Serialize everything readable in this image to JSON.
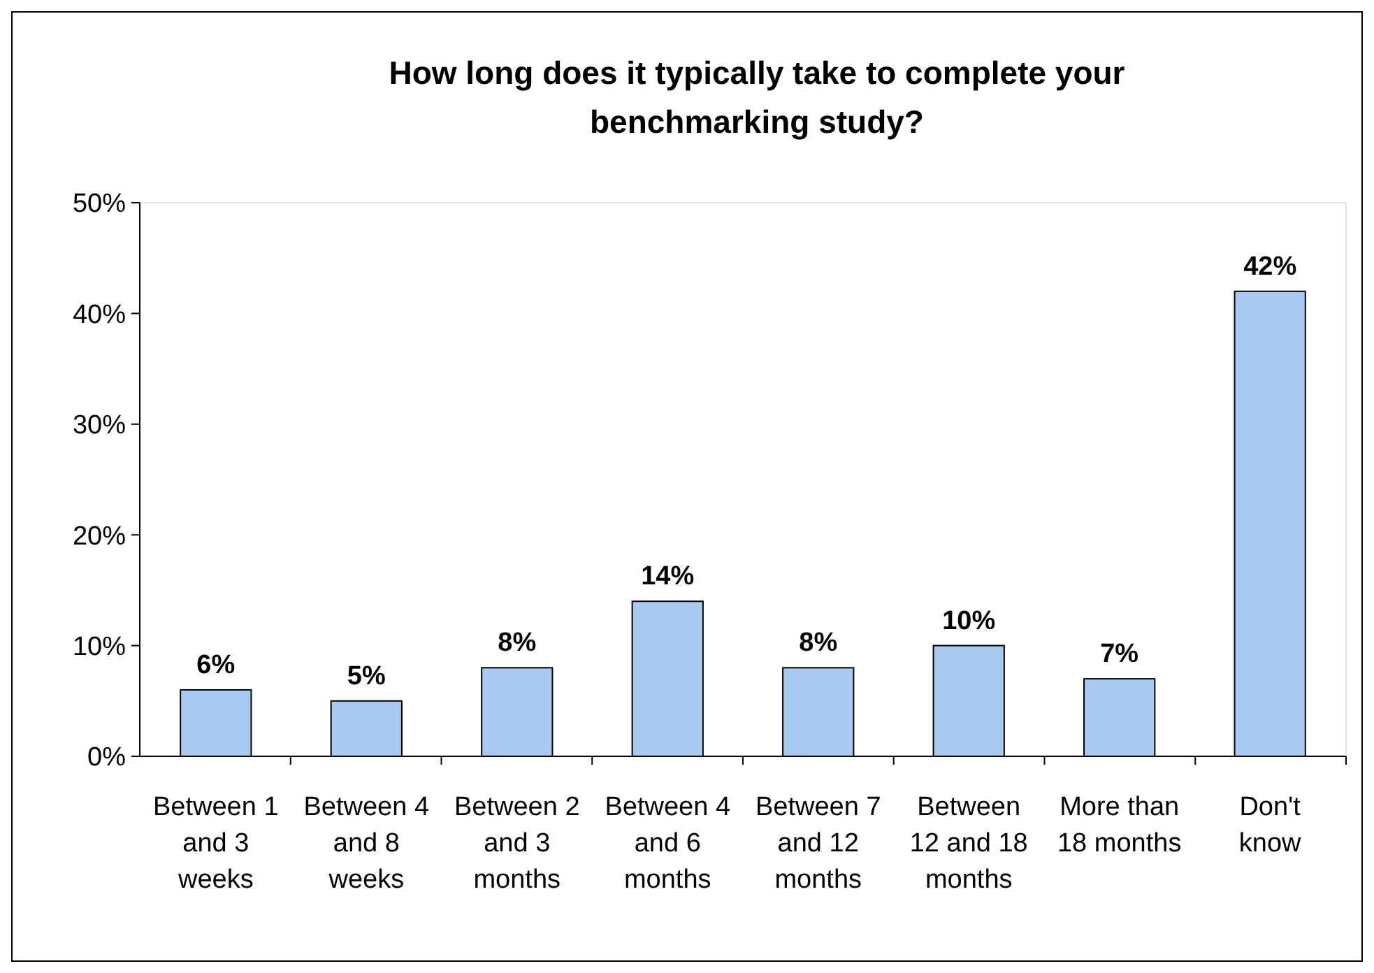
{
  "chart_data": {
    "type": "bar",
    "title": "How long does it typically take to complete your benchmarking study?",
    "categories": [
      "Between 1 and 3 weeks",
      "Between 4 and 8 weeks",
      "Between 2 and 3 months",
      "Between 4 and 6 months",
      "Between 7 and 12 months",
      "Between 12 and 18 months",
      "More than 18 months",
      "Don't know"
    ],
    "values": [
      6,
      5,
      8,
      14,
      8,
      10,
      7,
      42
    ],
    "value_labels": [
      "6%",
      "5%",
      "8%",
      "14%",
      "8%",
      "10%",
      "7%",
      "42%"
    ],
    "color": "#a6caf0",
    "ylim": [
      0,
      50
    ],
    "yticks": [
      {
        "value": 0,
        "label": "0%"
      },
      {
        "value": 10,
        "label": "10%"
      },
      {
        "value": 20,
        "label": "20%"
      },
      {
        "value": 30,
        "label": "30%"
      },
      {
        "value": 40,
        "label": "40%"
      },
      {
        "value": 50,
        "label": "50%"
      }
    ],
    "grid": false
  }
}
